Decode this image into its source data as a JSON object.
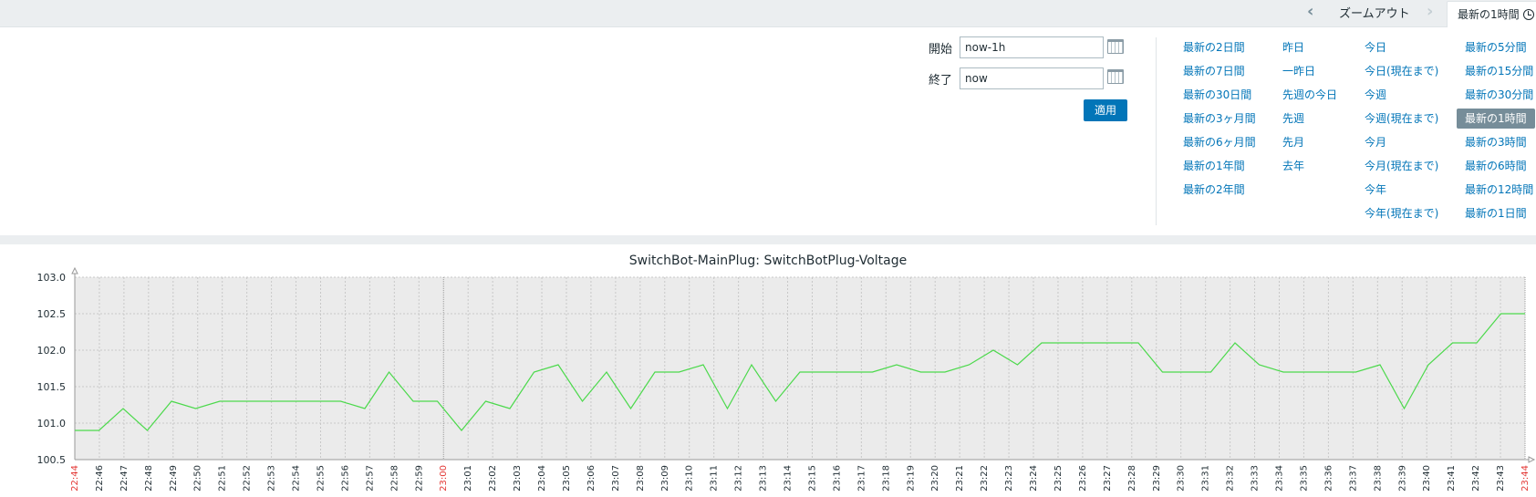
{
  "topbar": {
    "zoom_out_label": "ズームアウト",
    "active_tab_label": "最新の1時間"
  },
  "filter": {
    "from_label": "開始",
    "from_value": "now-1h",
    "to_label": "終了",
    "to_value": "now",
    "apply_label": "適用",
    "quick_ranges": [
      [
        "最新の2日間",
        "最新の7日間",
        "最新の30日間",
        "最新の3ヶ月間",
        "最新の6ヶ月間",
        "最新の1年間",
        "最新の2年間"
      ],
      [
        "昨日",
        "一昨日",
        "先週の今日",
        "先週",
        "先月",
        "去年"
      ],
      [
        "今日",
        "今日(現在まで)",
        "今週",
        "今週(現在まで)",
        "今月",
        "今月(現在まで)",
        "今年",
        "今年(現在まで)"
      ],
      [
        "最新の5分間",
        "最新の15分間",
        "最新の30分間",
        "最新の1時間",
        "最新の3時間",
        "最新の6時間",
        "最新の12時間",
        "最新の1日間"
      ]
    ],
    "selected_range": "最新の1時間"
  },
  "colors": {
    "line": "#4cd94c",
    "link": "#0275b8",
    "accent_time": "#e33734"
  },
  "chart_data": {
    "type": "line",
    "title": "SwitchBot-MainPlug: SwitchBotPlug-Voltage",
    "ylim": [
      100.5,
      103.0
    ],
    "yticks": [
      "100.5",
      "101.0",
      "101.5",
      "102.0",
      "102.5",
      "103.0"
    ],
    "xticks": [
      "22:44",
      "22:46",
      "22:47",
      "22:48",
      "22:49",
      "22:50",
      "22:51",
      "22:52",
      "22:53",
      "22:54",
      "22:55",
      "22:56",
      "22:57",
      "22:58",
      "22:59",
      "23:00",
      "23:01",
      "23:02",
      "23:03",
      "23:04",
      "23:05",
      "23:06",
      "23:07",
      "23:08",
      "23:09",
      "23:10",
      "23:11",
      "23:12",
      "23:13",
      "23:14",
      "23:15",
      "23:16",
      "23:17",
      "23:18",
      "23:19",
      "23:20",
      "23:21",
      "23:22",
      "23:23",
      "23:24",
      "23:25",
      "23:26",
      "23:27",
      "23:28",
      "23:29",
      "23:30",
      "23:31",
      "23:32",
      "23:33",
      "23:34",
      "23:35",
      "23:36",
      "23:37",
      "23:38",
      "23:39",
      "23:40",
      "23:41",
      "23:42",
      "23:43",
      "23:44"
    ],
    "highlight_ticks": [
      "22:44",
      "23:00",
      "23:44"
    ],
    "grid": true,
    "series": [
      {
        "values": [
          100.9,
          100.9,
          101.2,
          100.9,
          101.3,
          101.2,
          101.3,
          101.3,
          101.3,
          101.3,
          101.3,
          101.3,
          101.2,
          101.7,
          101.3,
          101.3,
          100.9,
          101.3,
          101.2,
          101.7,
          101.8,
          101.3,
          101.7,
          101.2,
          101.7,
          101.7,
          101.8,
          101.2,
          101.8,
          101.3,
          101.7,
          101.7,
          101.7,
          101.7,
          101.8,
          101.7,
          101.7,
          101.8,
          102.0,
          101.8,
          102.1,
          102.1,
          102.1,
          102.1,
          102.1,
          101.7,
          101.7,
          101.7,
          102.1,
          101.8,
          101.7,
          101.7,
          101.7,
          101.7,
          101.8,
          101.2,
          101.8,
          102.1,
          102.1,
          102.5,
          102.5
        ]
      }
    ]
  }
}
